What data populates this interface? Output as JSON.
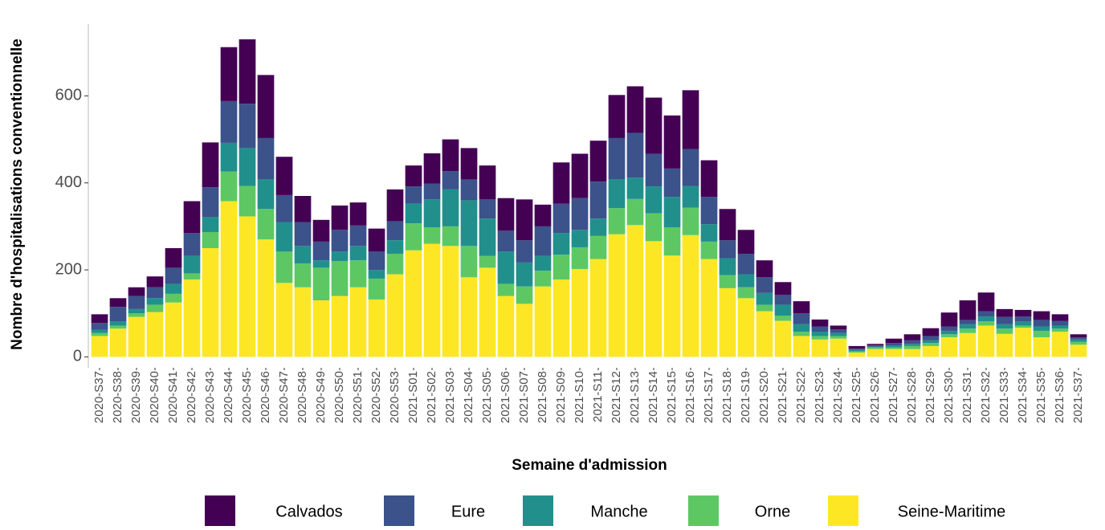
{
  "chart_data": {
    "type": "stacked-bar",
    "y_label": "Nombre d'hospitalisations conventionnelle",
    "x_label": "Semaine d'admission",
    "categories": [
      "2020-S37",
      "2020-S38",
      "2020-S39",
      "2020-S40",
      "2020-S41",
      "2020-S42",
      "2020-S43",
      "2020-S44",
      "2020-S45",
      "2020-S46",
      "2020-S47",
      "2020-S48",
      "2020-S49",
      "2020-S50",
      "2020-S51",
      "2020-S52",
      "2020-S53",
      "2021-S01",
      "2021-S02",
      "2021-S03",
      "2021-S04",
      "2021-S05",
      "2021-S06",
      "2021-S07",
      "2021-S08",
      "2021-S09",
      "2021-S10",
      "2021-S11",
      "2021-S12",
      "2021-S13",
      "2021-S14",
      "2021-S15",
      "2021-S16",
      "2021-S17",
      "2021-S18",
      "2021-S19",
      "2021-S20",
      "2021-S21",
      "2021-S22",
      "2021-S23",
      "2021-S24",
      "2021-S25",
      "2021-S26",
      "2021-S27",
      "2021-S28",
      "2021-S29",
      "2021-S30",
      "2021-S31",
      "2021-S32",
      "2021-S33",
      "2021-S34",
      "2021-S35",
      "2021-S36",
      "2021-S37"
    ],
    "series": [
      {
        "name": "Calvados",
        "color": "#440154",
        "values": [
          20,
          20,
          20,
          25,
          45,
          73,
          103,
          124,
          148,
          145,
          88,
          60,
          50,
          56,
          53,
          53,
          73,
          48,
          70,
          73,
          72,
          78,
          75,
          94,
          50,
          95,
          102,
          94,
          99,
          107,
          129,
          122,
          135,
          84,
          72,
          55,
          39,
          29,
          28,
          16,
          9,
          6,
          3,
          10,
          14,
          18,
          32,
          45,
          43,
          18,
          15,
          20,
          15,
          7
        ]
      },
      {
        "name": "Eure",
        "color": "#3b528b",
        "values": [
          16,
          33,
          30,
          25,
          37,
          53,
          68,
          96,
          102,
          95,
          62,
          55,
          43,
          50,
          47,
          42,
          44,
          40,
          36,
          42,
          48,
          44,
          48,
          51,
          68,
          67,
          73,
          85,
          95,
          103,
          75,
          65,
          85,
          63,
          41,
          47,
          36,
          23,
          25,
          12,
          8,
          3,
          3,
          6,
          8,
          10,
          10,
          10,
          12,
          17,
          11,
          15,
          11,
          5
        ]
      },
      {
        "name": "Manche",
        "color": "#21908c",
        "values": [
          7,
          10,
          10,
          15,
          23,
          40,
          35,
          66,
          87,
          68,
          68,
          40,
          17,
          22,
          33,
          20,
          31,
          45,
          64,
          85,
          105,
          86,
          74,
          55,
          34,
          50,
          40,
          40,
          66,
          49,
          62,
          70,
          50,
          40,
          39,
          30,
          27,
          25,
          17,
          10,
          7,
          3,
          2,
          4,
          5,
          6,
          8,
          10,
          11,
          10,
          10,
          10,
          7,
          5
        ]
      },
      {
        "name": "Orne",
        "color": "#5dc863",
        "values": [
          7,
          7,
          8,
          17,
          20,
          14,
          37,
          68,
          70,
          70,
          72,
          55,
          75,
          80,
          62,
          48,
          47,
          62,
          38,
          45,
          72,
          27,
          28,
          40,
          36,
          57,
          50,
          53,
          60,
          60,
          64,
          65,
          63,
          40,
          30,
          25,
          15,
          12,
          10,
          8,
          6,
          3,
          4,
          4,
          7,
          7,
          7,
          10,
          10,
          12,
          5,
          15,
          7,
          7
        ]
      },
      {
        "name": "Seine-Maritime",
        "color": "#fde725",
        "values": [
          48,
          65,
          92,
          103,
          125,
          178,
          250,
          358,
          323,
          270,
          170,
          160,
          130,
          140,
          160,
          132,
          190,
          245,
          260,
          255,
          183,
          205,
          140,
          122,
          162,
          178,
          202,
          225,
          282,
          303,
          266,
          233,
          280,
          225,
          158,
          135,
          105,
          83,
          48,
          40,
          42,
          10,
          18,
          18,
          18,
          25,
          45,
          55,
          72,
          53,
          67,
          45,
          58,
          28
        ]
      }
    ],
    "ylim": [
      -25,
      765
    ],
    "yticks": [
      0,
      200,
      400,
      600
    ]
  }
}
